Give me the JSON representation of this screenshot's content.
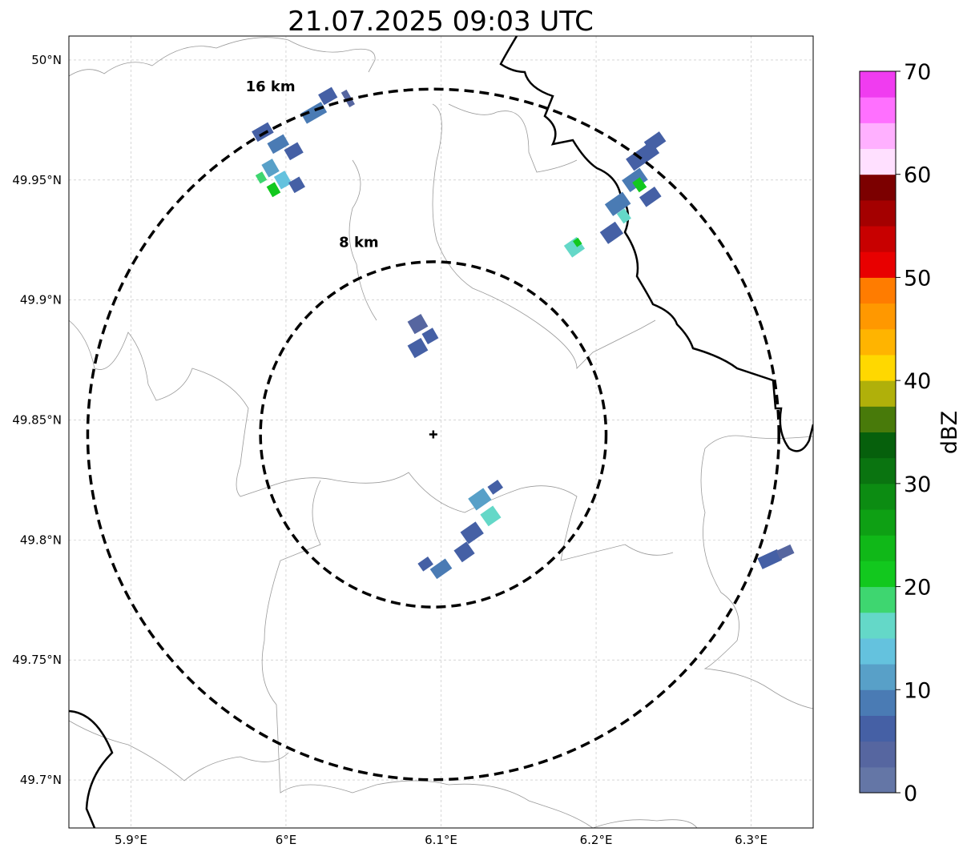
{
  "title": "21.07.2025 09:03 UTC",
  "map": {
    "lon_range": [
      5.86,
      6.34
    ],
    "lat_range": [
      49.68,
      50.01
    ],
    "grid": true,
    "lon_ticks": [
      {
        "value": 5.9,
        "label": "5.9°E"
      },
      {
        "value": 6.0,
        "label": "6°E"
      },
      {
        "value": 6.1,
        "label": "6.1°E"
      },
      {
        "value": 6.2,
        "label": "6.2°E"
      },
      {
        "value": 6.3,
        "label": "6.3°E"
      }
    ],
    "lat_ticks": [
      {
        "value": 50.0,
        "label": "50°N"
      },
      {
        "value": 49.95,
        "label": "49.95°N"
      },
      {
        "value": 49.9,
        "label": "49.9°N"
      },
      {
        "value": 49.85,
        "label": "49.85°N"
      },
      {
        "value": 49.8,
        "label": "49.8°N"
      },
      {
        "value": 49.75,
        "label": "49.75°N"
      },
      {
        "value": 49.7,
        "label": "49.7°N"
      }
    ],
    "center": {
      "lon": 6.095,
      "lat": 49.844
    },
    "rings": [
      {
        "label": "8 km",
        "radius_km": 8,
        "label_lon": 6.047,
        "label_lat": 49.922
      },
      {
        "label": "16 km",
        "radius_km": 16,
        "label_lon": 5.99,
        "label_lat": 49.987
      }
    ]
  },
  "colorbar": {
    "label": "dBZ",
    "min": 0,
    "max": 70,
    "step": 2.5,
    "ticks": [
      {
        "value": 0,
        "label": "0"
      },
      {
        "value": 10,
        "label": "10"
      },
      {
        "value": 20,
        "label": "20"
      },
      {
        "value": 30,
        "label": "30"
      },
      {
        "value": 40,
        "label": "40"
      },
      {
        "value": 50,
        "label": "50"
      },
      {
        "value": 60,
        "label": "60"
      },
      {
        "value": 70,
        "label": "70"
      }
    ],
    "colors": [
      "#6476a6",
      "#5666a0",
      "#4560a5",
      "#4a7bb4",
      "#58a0c8",
      "#64c2de",
      "#64d8c8",
      "#3ed670",
      "#12c81e",
      "#10b818",
      "#0ea014",
      "#0c8c12",
      "#0a7410",
      "#06600c",
      "#487a0a",
      "#b0b00a",
      "#ffd800",
      "#ffb400",
      "#ff9800",
      "#ff7c00",
      "#e80000",
      "#c80000",
      "#a40000",
      "#7c0000",
      "#ffe0ff",
      "#ffb0ff",
      "#ff70ff",
      "#f03cf0"
    ]
  },
  "echoes": [
    {
      "lon": 5.985,
      "lat": 49.97,
      "dbz": 5,
      "w": 0.012,
      "h": 0.005,
      "rot": -30
    },
    {
      "lon": 5.995,
      "lat": 49.965,
      "dbz": 8,
      "w": 0.012,
      "h": 0.005,
      "rot": -30
    },
    {
      "lon": 6.005,
      "lat": 49.962,
      "dbz": 6,
      "w": 0.01,
      "h": 0.005,
      "rot": -30
    },
    {
      "lon": 5.99,
      "lat": 49.955,
      "dbz": 12,
      "w": 0.008,
      "h": 0.006,
      "rot": -30
    },
    {
      "lon": 5.998,
      "lat": 49.95,
      "dbz": 14,
      "w": 0.008,
      "h": 0.006,
      "rot": -30
    },
    {
      "lon": 5.992,
      "lat": 49.946,
      "dbz": 21,
      "w": 0.006,
      "h": 0.005,
      "rot": -30
    },
    {
      "lon": 5.984,
      "lat": 49.951,
      "dbz": 18,
      "w": 0.005,
      "h": 0.004,
      "rot": -30
    },
    {
      "lon": 6.007,
      "lat": 49.948,
      "dbz": 5,
      "w": 0.008,
      "h": 0.005,
      "rot": -30
    },
    {
      "lon": 6.018,
      "lat": 49.978,
      "dbz": 8,
      "w": 0.015,
      "h": 0.005,
      "rot": -30
    },
    {
      "lon": 6.027,
      "lat": 49.985,
      "dbz": 5,
      "w": 0.01,
      "h": 0.005,
      "rot": -30
    },
    {
      "lon": 6.04,
      "lat": 49.984,
      "dbz": 4,
      "w": 0.004,
      "h": 0.007,
      "rot": -30
    },
    {
      "lon": 6.085,
      "lat": 49.89,
      "dbz": 4,
      "w": 0.01,
      "h": 0.006,
      "rot": -30
    },
    {
      "lon": 6.085,
      "lat": 49.88,
      "dbz": 6,
      "w": 0.01,
      "h": 0.006,
      "rot": -30
    },
    {
      "lon": 6.093,
      "lat": 49.885,
      "dbz": 5,
      "w": 0.008,
      "h": 0.005,
      "rot": -30
    },
    {
      "lon": 6.125,
      "lat": 49.817,
      "dbz": 12,
      "w": 0.012,
      "h": 0.006,
      "rot": -35
    },
    {
      "lon": 6.132,
      "lat": 49.81,
      "dbz": 16,
      "w": 0.01,
      "h": 0.006,
      "rot": -35
    },
    {
      "lon": 6.12,
      "lat": 49.803,
      "dbz": 7,
      "w": 0.012,
      "h": 0.006,
      "rot": -35
    },
    {
      "lon": 6.115,
      "lat": 49.795,
      "dbz": 6,
      "w": 0.01,
      "h": 0.006,
      "rot": -35
    },
    {
      "lon": 6.1,
      "lat": 49.788,
      "dbz": 8,
      "w": 0.012,
      "h": 0.005,
      "rot": -35
    },
    {
      "lon": 6.09,
      "lat": 49.79,
      "dbz": 5,
      "w": 0.008,
      "h": 0.004,
      "rot": -35
    },
    {
      "lon": 6.135,
      "lat": 49.822,
      "dbz": 5,
      "w": 0.008,
      "h": 0.004,
      "rot": -35
    },
    {
      "lon": 6.23,
      "lat": 49.96,
      "dbz": 5,
      "w": 0.02,
      "h": 0.006,
      "rot": -35
    },
    {
      "lon": 6.238,
      "lat": 49.966,
      "dbz": 6,
      "w": 0.012,
      "h": 0.005,
      "rot": -35
    },
    {
      "lon": 6.225,
      "lat": 49.95,
      "dbz": 8,
      "w": 0.014,
      "h": 0.006,
      "rot": -35
    },
    {
      "lon": 6.228,
      "lat": 49.948,
      "dbz": 21,
      "w": 0.006,
      "h": 0.005,
      "rot": -35
    },
    {
      "lon": 6.214,
      "lat": 49.94,
      "dbz": 9,
      "w": 0.014,
      "h": 0.006,
      "rot": -35
    },
    {
      "lon": 6.218,
      "lat": 49.935,
      "dbz": 16,
      "w": 0.006,
      "h": 0.005,
      "rot": -35
    },
    {
      "lon": 6.21,
      "lat": 49.928,
      "dbz": 7,
      "w": 0.012,
      "h": 0.006,
      "rot": -35
    },
    {
      "lon": 6.235,
      "lat": 49.943,
      "dbz": 5,
      "w": 0.012,
      "h": 0.005,
      "rot": -35
    },
    {
      "lon": 6.186,
      "lat": 49.922,
      "dbz": 15,
      "w": 0.01,
      "h": 0.006,
      "rot": -35
    },
    {
      "lon": 6.188,
      "lat": 49.924,
      "dbz": 20,
      "w": 0.004,
      "h": 0.003,
      "rot": -35
    },
    {
      "lon": 6.312,
      "lat": 49.792,
      "dbz": 5,
      "w": 0.014,
      "h": 0.005,
      "rot": -25
    },
    {
      "lon": 6.322,
      "lat": 49.795,
      "dbz": 4,
      "w": 0.01,
      "h": 0.004,
      "rot": -25
    }
  ]
}
